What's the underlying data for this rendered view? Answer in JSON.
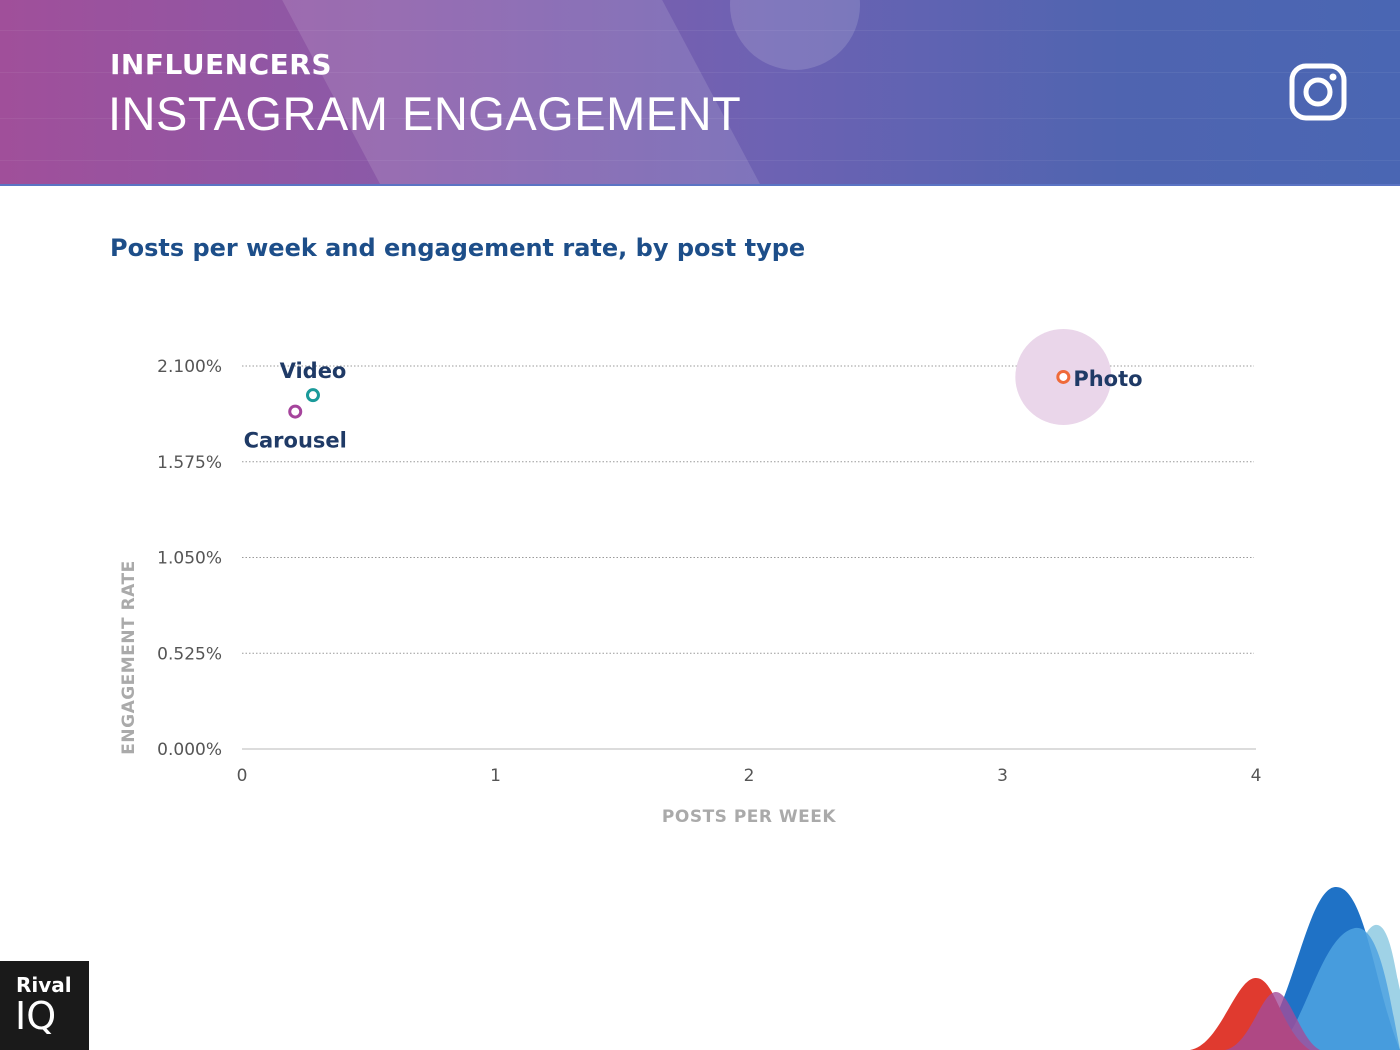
{
  "header": {
    "kicker": "INFLUENCERS",
    "title": "INSTAGRAM ENGAGEMENT",
    "platform_icon": "instagram-icon"
  },
  "subtitle": "Posts per week and engagement rate, by post type",
  "chart_data": {
    "type": "scatter",
    "xlabel": "POSTS PER WEEK",
    "ylabel": "ENGAGEMENT RATE",
    "xlim": [
      0,
      4
    ],
    "ylim": [
      0,
      2.1
    ],
    "x_ticks": [
      "0",
      "1",
      "2",
      "3",
      "4"
    ],
    "y_ticks": [
      "0.000%",
      "0.525%",
      "1.050%",
      "1.575%",
      "2.100%"
    ],
    "grid": "horizontal dotted",
    "points": [
      {
        "label": "Video",
        "x": 0.28,
        "y": 1.94,
        "color": "#1a9a9a",
        "bubble": false
      },
      {
        "label": "Carousel",
        "x": 0.21,
        "y": 1.85,
        "color": "#a5449c",
        "bubble": false
      },
      {
        "label": "Photo",
        "x": 3.24,
        "y": 2.04,
        "color": "#ef6a3a",
        "bubble": true,
        "bubble_color": "#ead6ea"
      }
    ]
  },
  "footer": {
    "brand_line1": "Rival",
    "brand_line2": "IQ"
  }
}
